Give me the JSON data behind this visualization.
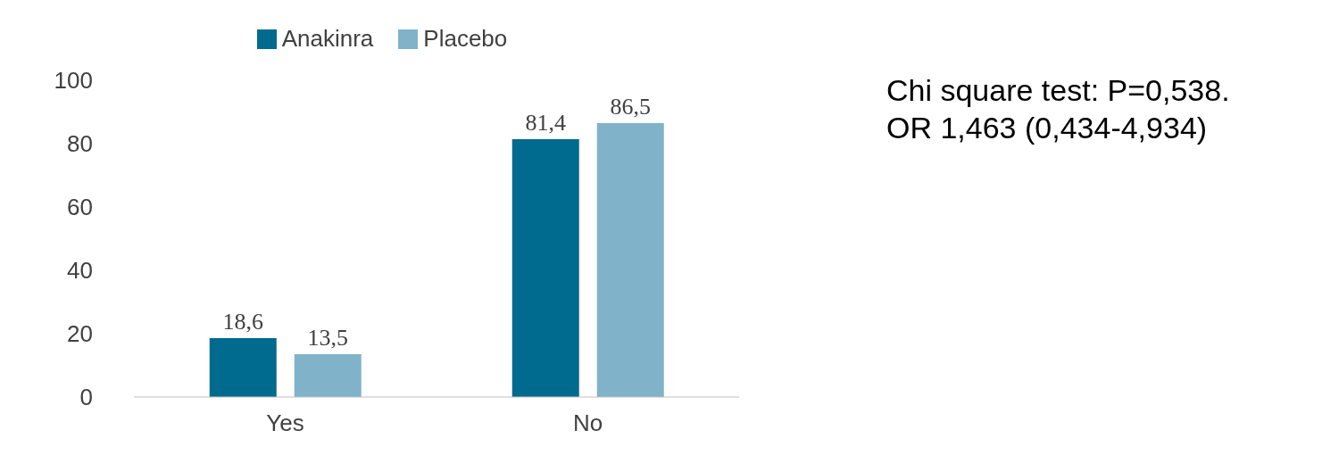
{
  "chart_data": {
    "type": "bar",
    "categories": [
      "Yes",
      "No"
    ],
    "series": [
      {
        "name": "Anakinra",
        "color": "#006a8f",
        "values": [
          18.6,
          81.4
        ],
        "value_labels": [
          "18,6",
          "81,4"
        ]
      },
      {
        "name": "Placebo",
        "color": "#80b3c9",
        "values": [
          13.5,
          86.5
        ],
        "value_labels": [
          "13,5",
          "86,5"
        ]
      }
    ],
    "ylim": [
      0,
      100
    ],
    "yticks": [
      0,
      20,
      40,
      60,
      80,
      100
    ],
    "grid": false,
    "legend": "top",
    "annotations": [
      "Chi square test: P=0,538.",
      "OR 1,463 (0,434-4,934)"
    ]
  }
}
